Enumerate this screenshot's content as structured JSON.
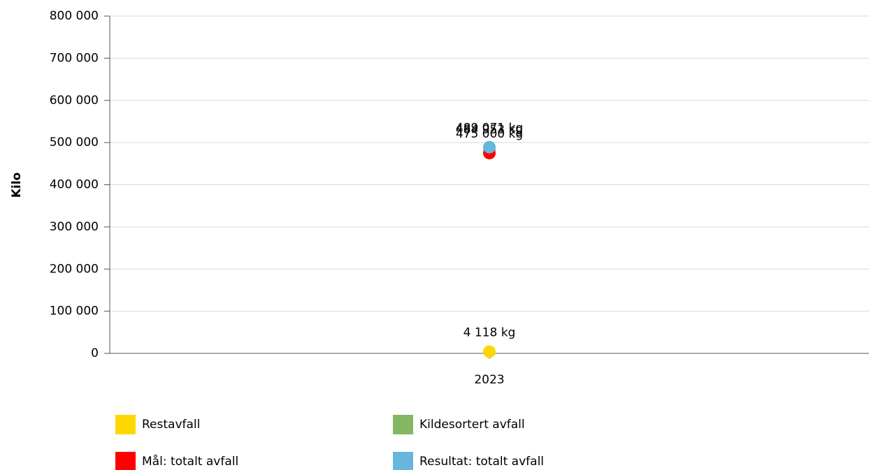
{
  "chart_data": {
    "type": "line",
    "y_label": "Kilo",
    "categories": [
      "2023"
    ],
    "series": [
      {
        "name": "Restavfall",
        "color": "#ffd700",
        "values": [
          4118
        ],
        "value_labels": [
          "4 118 kg"
        ]
      },
      {
        "name": "Kildesortert avfall",
        "color": "#84b761",
        "values": [
          484953
        ],
        "value_labels": [
          "484 953 kg"
        ]
      },
      {
        "name": "Mål: totalt avfall",
        "color": "#ff0000",
        "values": [
          475000
        ],
        "value_labels": [
          "475 000 kg"
        ]
      },
      {
        "name": "Resultat: totalt avfall",
        "color": "#67b7dc",
        "values": [
          489071
        ],
        "value_labels": [
          "489 071 kg"
        ]
      }
    ],
    "ylim": [
      0,
      800000
    ],
    "yticks": [
      0,
      {
        "value": 100000,
        "label": "100 000"
      },
      {
        "value": 200000,
        "label": "200 000"
      },
      {
        "value": 300000,
        "label": "300 000"
      },
      {
        "value": 400000,
        "label": "400 000"
      },
      {
        "value": 500000,
        "label": "500 000"
      },
      {
        "value": 600000,
        "label": "600 000"
      },
      {
        "value": 700000,
        "label": "700 000"
      },
      {
        "value": 800000,
        "label": "800 000"
      }
    ],
    "grid": true
  }
}
